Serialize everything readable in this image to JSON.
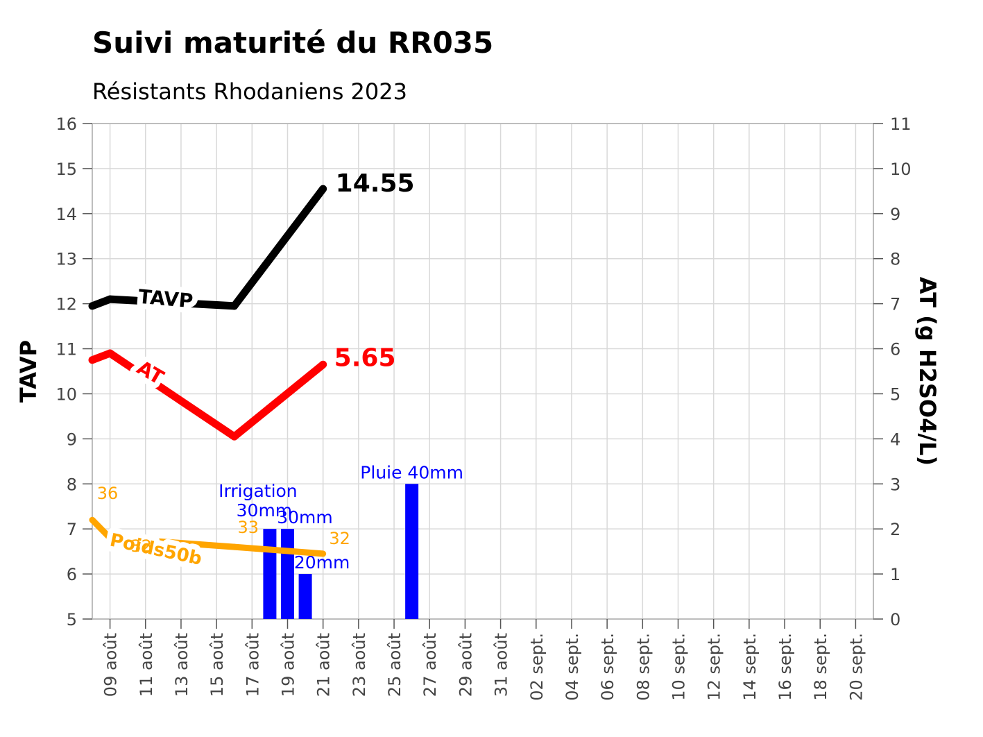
{
  "chart_data": {
    "type": "line",
    "title": "Suivi maturité du RR035",
    "subtitle": "Résistants Rhodaniens 2023",
    "ylabel_left": "TAVP",
    "ylabel_right": "AT (g H2SO4/L)",
    "ylim_left": [
      5,
      16
    ],
    "ylim_right": [
      0,
      11
    ],
    "yticks_left": [
      5,
      6,
      7,
      8,
      9,
      10,
      11,
      12,
      13,
      14,
      15,
      16
    ],
    "yticks_right": [
      0,
      1,
      2,
      3,
      4,
      5,
      6,
      7,
      8,
      9,
      10,
      11
    ],
    "x_range": [
      "2023-08-08",
      "2023-09-21"
    ],
    "x_ticks": [
      {
        "date": "2023-08-09",
        "label": "09 août"
      },
      {
        "date": "2023-08-11",
        "label": "11 août"
      },
      {
        "date": "2023-08-13",
        "label": "13 août"
      },
      {
        "date": "2023-08-15",
        "label": "15 août"
      },
      {
        "date": "2023-08-17",
        "label": "17 août"
      },
      {
        "date": "2023-08-19",
        "label": "19 août"
      },
      {
        "date": "2023-08-21",
        "label": "21 août"
      },
      {
        "date": "2023-08-23",
        "label": "23 août"
      },
      {
        "date": "2023-08-25",
        "label": "25 août"
      },
      {
        "date": "2023-08-27",
        "label": "27 août"
      },
      {
        "date": "2023-08-29",
        "label": "29 août"
      },
      {
        "date": "2023-08-31",
        "label": "31 août"
      },
      {
        "date": "2023-09-02",
        "label": "02 sept."
      },
      {
        "date": "2023-09-04",
        "label": "04 sept."
      },
      {
        "date": "2023-09-06",
        "label": "06 sept."
      },
      {
        "date": "2023-09-08",
        "label": "08 sept."
      },
      {
        "date": "2023-09-10",
        "label": "10 sept."
      },
      {
        "date": "2023-09-12",
        "label": "12 sept."
      },
      {
        "date": "2023-09-14",
        "label": "14 sept."
      },
      {
        "date": "2023-09-16",
        "label": "16 sept."
      },
      {
        "date": "2023-09-18",
        "label": "18 sept."
      },
      {
        "date": "2023-09-20",
        "label": "20 sept."
      }
    ],
    "grid": true,
    "series": [
      {
        "name": "TAVP",
        "axis": "left",
        "color": "#000000",
        "points": [
          {
            "x": "2023-08-08",
            "y": 11.95
          },
          {
            "x": "2023-08-09",
            "y": 12.1
          },
          {
            "x": "2023-08-16",
            "y": 11.95
          },
          {
            "x": "2023-08-21",
            "y": 14.55
          }
        ],
        "end_label": "14.55"
      },
      {
        "name": "AT",
        "axis": "right",
        "color": "#ff0000",
        "points": [
          {
            "x": "2023-08-08",
            "y": 5.75
          },
          {
            "x": "2023-08-09",
            "y": 5.9
          },
          {
            "x": "2023-08-16",
            "y": 4.05
          },
          {
            "x": "2023-08-21",
            "y": 5.65
          }
        ],
        "end_label": "5.65"
      },
      {
        "name": "Poids50b",
        "axis": "left",
        "color": "#ffa500",
        "points": [
          {
            "x": "2023-08-08",
            "y": 7.2
          },
          {
            "x": "2023-08-09",
            "y": 6.8
          },
          {
            "x": "2023-08-16",
            "y": 6.6
          },
          {
            "x": "2023-08-21",
            "y": 6.45
          }
        ],
        "point_labels": [
          "36",
          "32",
          "33",
          "32"
        ]
      }
    ],
    "bars": {
      "axis": "right",
      "color": "#0000ff",
      "items": [
        {
          "x": "2023-08-18",
          "value": 2,
          "label": "Irrigation 30mm"
        },
        {
          "x": "2023-08-19",
          "value": 2,
          "label": "30mm"
        },
        {
          "x": "2023-08-20",
          "value": 1,
          "label": "20mm"
        },
        {
          "x": "2023-08-26",
          "value": 3,
          "label": "Pluie 40mm"
        }
      ]
    }
  }
}
